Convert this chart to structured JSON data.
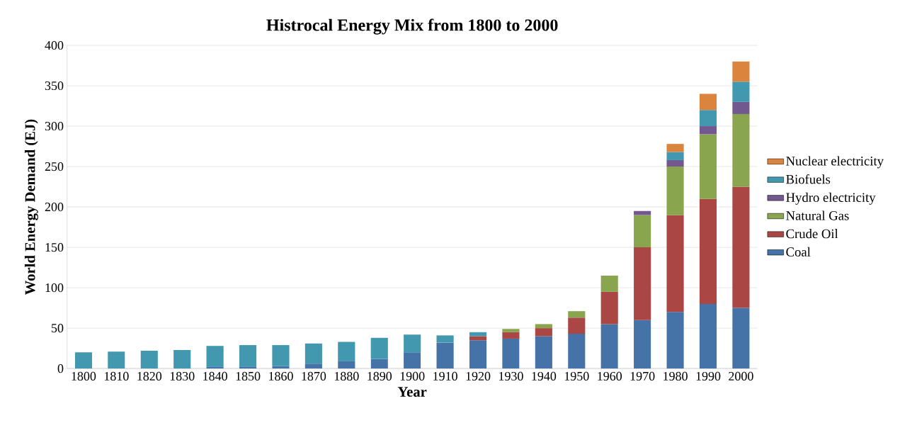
{
  "chart_data": {
    "type": "bar",
    "stacked": true,
    "title": "Histrocal Energy Mix from 1800 to 2000",
    "xlabel": "Year",
    "ylabel": "World Energy Demand (EJ)",
    "categories": [
      "1800",
      "1810",
      "1820",
      "1830",
      "1840",
      "1850",
      "1860",
      "1870",
      "1880",
      "1890",
      "1900",
      "1910",
      "1920",
      "1930",
      "1940",
      "1950",
      "1960",
      "1970",
      "1980",
      "1990",
      "2000"
    ],
    "series": [
      {
        "name": "Coal",
        "color": "#4572a7",
        "values": [
          null,
          null,
          null,
          null,
          2,
          2,
          3,
          6,
          9,
          12,
          20,
          32,
          35,
          37,
          40,
          43,
          55,
          60,
          70,
          80,
          75
        ]
      },
      {
        "name": "Crude Oil",
        "color": "#aa4643",
        "values": [
          null,
          null,
          null,
          null,
          null,
          null,
          null,
          null,
          null,
          null,
          null,
          null,
          5,
          8,
          10,
          20,
          40,
          90,
          120,
          130,
          150
        ]
      },
      {
        "name": "Natural Gas",
        "color": "#89a54e",
        "values": [
          null,
          null,
          null,
          null,
          null,
          null,
          null,
          null,
          null,
          null,
          null,
          null,
          null,
          4,
          5,
          8,
          20,
          40,
          60,
          80,
          90
        ]
      },
      {
        "name": "Hydro electricity",
        "color": "#71588f",
        "values": [
          null,
          null,
          null,
          null,
          null,
          null,
          null,
          null,
          null,
          null,
          null,
          null,
          null,
          null,
          null,
          null,
          null,
          5,
          8,
          10,
          15
        ]
      },
      {
        "name": "Biofuels",
        "color": "#4198af",
        "values": [
          20,
          21,
          22,
          23,
          26,
          27,
          26,
          25,
          24,
          26,
          22,
          9,
          5,
          null,
          null,
          null,
          null,
          null,
          10,
          20,
          25
        ]
      },
      {
        "name": "Nuclear electricity",
        "color": "#db843d",
        "values": [
          null,
          null,
          null,
          null,
          null,
          null,
          null,
          null,
          null,
          null,
          null,
          null,
          null,
          null,
          null,
          null,
          null,
          null,
          10,
          20,
          25
        ]
      }
    ],
    "ylim": [
      0,
      400
    ],
    "yticks": [
      0,
      50,
      100,
      150,
      200,
      250,
      300,
      350,
      400
    ],
    "grid": "y",
    "legend": "right"
  }
}
